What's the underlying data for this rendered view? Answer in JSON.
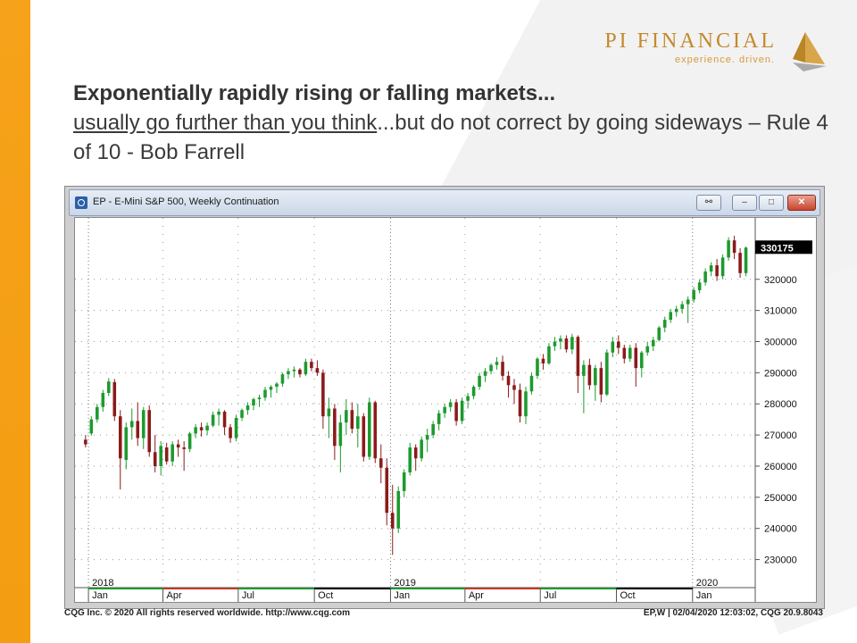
{
  "logo": {
    "name": "PI FINANCIAL",
    "tagline": "experience. driven."
  },
  "headline": {
    "bold": "Exponentially rapidly rising or falling markets...",
    "underlined": "usually go further than you think",
    "rest": "...but do not correct by going sideways  – Rule 4 of 10 - Bob Farrell"
  },
  "window": {
    "title": "EP - E-Mini S&P 500, Weekly Continuation",
    "btn_link": "⚯",
    "btn_min": "–",
    "btn_max": "□",
    "btn_close": "✕"
  },
  "footer": {
    "left": "CQG Inc. © 2020 All rights reserved worldwide. http://www.cqg.com",
    "right": "EP,W | 02/04/2020 12:03:02, CQG 20.9.8043"
  },
  "colors": {
    "up": "#1d9a2e",
    "down": "#8b1a1a",
    "accent_orange": "#f6a21a"
  },
  "chart_data": {
    "type": "candlestick",
    "title": "EP - E-Mini S&P 500, Weekly Continuation",
    "ylim": [
      225000,
      338000
    ],
    "y_ticks": [
      230000,
      240000,
      250000,
      260000,
      270000,
      280000,
      290000,
      300000,
      310000,
      320000
    ],
    "last_price": "330175",
    "year_labels": [
      "2018",
      "2019",
      "2020"
    ],
    "month_labels": [
      "Jan",
      "Apr",
      "Jul",
      "Oct",
      "Jan",
      "Apr",
      "Jul",
      "Oct",
      "Jan"
    ],
    "x_start": "2017-12-25",
    "candles": [
      {
        "o": 268500,
        "h": 270000,
        "l": 266000,
        "c": 267000
      },
      {
        "o": 270500,
        "h": 276000,
        "l": 269800,
        "c": 275000
      },
      {
        "o": 275000,
        "h": 280000,
        "l": 274000,
        "c": 279000
      },
      {
        "o": 279000,
        "h": 284500,
        "l": 277500,
        "c": 283500
      },
      {
        "o": 283500,
        "h": 288300,
        "l": 282500,
        "c": 287200
      },
      {
        "o": 287000,
        "h": 288000,
        "l": 274500,
        "c": 276000
      },
      {
        "o": 276000,
        "h": 278000,
        "l": 252500,
        "c": 262500
      },
      {
        "o": 262000,
        "h": 274000,
        "l": 259000,
        "c": 272500
      },
      {
        "o": 272500,
        "h": 278500,
        "l": 268500,
        "c": 274500
      },
      {
        "o": 274500,
        "h": 280500,
        "l": 266500,
        "c": 269000
      },
      {
        "o": 269000,
        "h": 279000,
        "l": 265500,
        "c": 278000
      },
      {
        "o": 278000,
        "h": 279500,
        "l": 263000,
        "c": 264500
      },
      {
        "o": 264500,
        "h": 270000,
        "l": 258000,
        "c": 260000
      },
      {
        "o": 260000,
        "h": 268000,
        "l": 257000,
        "c": 266500
      },
      {
        "o": 266000,
        "h": 267500,
        "l": 260500,
        "c": 261500
      },
      {
        "o": 261500,
        "h": 268000,
        "l": 260000,
        "c": 267000
      },
      {
        "o": 267000,
        "h": 268500,
        "l": 263000,
        "c": 266000
      },
      {
        "o": 266000,
        "h": 268000,
        "l": 258500,
        "c": 265500
      },
      {
        "o": 265500,
        "h": 271000,
        "l": 264500,
        "c": 270500
      },
      {
        "o": 270500,
        "h": 273500,
        "l": 269000,
        "c": 272500
      },
      {
        "o": 272500,
        "h": 274000,
        "l": 269500,
        "c": 271500
      },
      {
        "o": 271500,
        "h": 274000,
        "l": 270000,
        "c": 273000
      },
      {
        "o": 273000,
        "h": 277500,
        "l": 272500,
        "c": 276500
      },
      {
        "o": 276500,
        "h": 278500,
        "l": 273000,
        "c": 277500
      },
      {
        "o": 277500,
        "h": 278000,
        "l": 270000,
        "c": 272500
      },
      {
        "o": 272500,
        "h": 273500,
        "l": 267500,
        "c": 269000
      },
      {
        "o": 269000,
        "h": 276500,
        "l": 268000,
        "c": 275500
      },
      {
        "o": 275500,
        "h": 278500,
        "l": 274500,
        "c": 278000
      },
      {
        "o": 278000,
        "h": 280500,
        "l": 276500,
        "c": 279500
      },
      {
        "o": 279500,
        "h": 282000,
        "l": 278000,
        "c": 281500
      },
      {
        "o": 281500,
        "h": 283000,
        "l": 279000,
        "c": 282000
      },
      {
        "o": 282000,
        "h": 285500,
        "l": 281000,
        "c": 284500
      },
      {
        "o": 284500,
        "h": 286000,
        "l": 282000,
        "c": 285500
      },
      {
        "o": 285500,
        "h": 287000,
        "l": 283500,
        "c": 286500
      },
      {
        "o": 286500,
        "h": 290000,
        "l": 285500,
        "c": 289500
      },
      {
        "o": 289500,
        "h": 291500,
        "l": 288000,
        "c": 290500
      },
      {
        "o": 290500,
        "h": 292000,
        "l": 288500,
        "c": 291000
      },
      {
        "o": 291000,
        "h": 291500,
        "l": 288500,
        "c": 289500
      },
      {
        "o": 289500,
        "h": 294500,
        "l": 289000,
        "c": 293500
      },
      {
        "o": 293500,
        "h": 294500,
        "l": 290500,
        "c": 291500
      },
      {
        "o": 291500,
        "h": 294000,
        "l": 289000,
        "c": 290000
      },
      {
        "o": 290000,
        "h": 291000,
        "l": 272000,
        "c": 276000
      },
      {
        "o": 276000,
        "h": 282000,
        "l": 269000,
        "c": 278500
      },
      {
        "o": 278500,
        "h": 280000,
        "l": 262000,
        "c": 266500
      },
      {
        "o": 266500,
        "h": 276500,
        "l": 258000,
        "c": 274000
      },
      {
        "o": 274000,
        "h": 281500,
        "l": 270000,
        "c": 278000
      },
      {
        "o": 278000,
        "h": 280500,
        "l": 270500,
        "c": 272000
      },
      {
        "o": 272000,
        "h": 280000,
        "l": 266000,
        "c": 276000
      },
      {
        "o": 276000,
        "h": 277000,
        "l": 261500,
        "c": 263000
      },
      {
        "o": 263000,
        "h": 282000,
        "l": 262000,
        "c": 280500
      },
      {
        "o": 280500,
        "h": 281000,
        "l": 261000,
        "c": 262500
      },
      {
        "o": 262500,
        "h": 267000,
        "l": 254500,
        "c": 259500
      },
      {
        "o": 259500,
        "h": 262500,
        "l": 241000,
        "c": 245000
      },
      {
        "o": 245000,
        "h": 254000,
        "l": 231500,
        "c": 240000
      },
      {
        "o": 240000,
        "h": 253500,
        "l": 238500,
        "c": 252000
      },
      {
        "o": 252000,
        "h": 259000,
        "l": 250000,
        "c": 258000
      },
      {
        "o": 258000,
        "h": 267500,
        "l": 257000,
        "c": 266000
      },
      {
        "o": 266000,
        "h": 267000,
        "l": 258500,
        "c": 262500
      },
      {
        "o": 262500,
        "h": 269500,
        "l": 261500,
        "c": 268500
      },
      {
        "o": 268500,
        "h": 272000,
        "l": 264500,
        "c": 270000
      },
      {
        "o": 270000,
        "h": 274500,
        "l": 269000,
        "c": 273500
      },
      {
        "o": 273500,
        "h": 278000,
        "l": 271500,
        "c": 277000
      },
      {
        "o": 277000,
        "h": 280000,
        "l": 275500,
        "c": 279000
      },
      {
        "o": 279000,
        "h": 281500,
        "l": 277500,
        "c": 280500
      },
      {
        "o": 280500,
        "h": 281500,
        "l": 273000,
        "c": 274500
      },
      {
        "o": 274500,
        "h": 282000,
        "l": 273500,
        "c": 281000
      },
      {
        "o": 281000,
        "h": 283500,
        "l": 278500,
        "c": 282500
      },
      {
        "o": 282500,
        "h": 286000,
        "l": 281500,
        "c": 285500
      },
      {
        "o": 285500,
        "h": 290000,
        "l": 284500,
        "c": 289000
      },
      {
        "o": 289000,
        "h": 291500,
        "l": 287000,
        "c": 290500
      },
      {
        "o": 290500,
        "h": 293000,
        "l": 289500,
        "c": 292500
      },
      {
        "o": 292500,
        "h": 295000,
        "l": 291000,
        "c": 293500
      },
      {
        "o": 293500,
        "h": 295500,
        "l": 287500,
        "c": 289000
      },
      {
        "o": 289000,
        "h": 290500,
        "l": 282000,
        "c": 286000
      },
      {
        "o": 286000,
        "h": 288000,
        "l": 280000,
        "c": 284500
      },
      {
        "o": 284500,
        "h": 286500,
        "l": 274000,
        "c": 276000
      },
      {
        "o": 276000,
        "h": 285500,
        "l": 273500,
        "c": 284000
      },
      {
        "o": 284000,
        "h": 290000,
        "l": 283000,
        "c": 289000
      },
      {
        "o": 289000,
        "h": 295000,
        "l": 288000,
        "c": 294500
      },
      {
        "o": 294500,
        "h": 296000,
        "l": 291000,
        "c": 293000
      },
      {
        "o": 293000,
        "h": 299500,
        "l": 292500,
        "c": 298500
      },
      {
        "o": 298500,
        "h": 301500,
        "l": 297000,
        "c": 300000
      },
      {
        "o": 300000,
        "h": 302000,
        "l": 297500,
        "c": 301000
      },
      {
        "o": 301000,
        "h": 302000,
        "l": 296500,
        "c": 297500
      },
      {
        "o": 297500,
        "h": 302500,
        "l": 296000,
        "c": 301500
      },
      {
        "o": 301500,
        "h": 302000,
        "l": 283500,
        "c": 289000
      },
      {
        "o": 289000,
        "h": 294000,
        "l": 277000,
        "c": 292500
      },
      {
        "o": 292500,
        "h": 294500,
        "l": 284500,
        "c": 286000
      },
      {
        "o": 286000,
        "h": 292500,
        "l": 281000,
        "c": 291500
      },
      {
        "o": 291500,
        "h": 293500,
        "l": 280500,
        "c": 283000
      },
      {
        "o": 283000,
        "h": 297500,
        "l": 282500,
        "c": 296500
      },
      {
        "o": 296500,
        "h": 301500,
        "l": 295000,
        "c": 300000
      },
      {
        "o": 300000,
        "h": 302000,
        "l": 296000,
        "c": 298000
      },
      {
        "o": 298000,
        "h": 299000,
        "l": 293000,
        "c": 294500
      },
      {
        "o": 294500,
        "h": 299000,
        "l": 293500,
        "c": 298000
      },
      {
        "o": 298000,
        "h": 299500,
        "l": 285500,
        "c": 291500
      },
      {
        "o": 291500,
        "h": 297000,
        "l": 288500,
        "c": 296500
      },
      {
        "o": 296500,
        "h": 300000,
        "l": 295500,
        "c": 298500
      },
      {
        "o": 298500,
        "h": 301500,
        "l": 297000,
        "c": 300500
      },
      {
        "o": 300500,
        "h": 305000,
        "l": 300000,
        "c": 304500
      },
      {
        "o": 304500,
        "h": 308000,
        "l": 303000,
        "c": 307000
      },
      {
        "o": 307000,
        "h": 310500,
        "l": 306000,
        "c": 309500
      },
      {
        "o": 309500,
        "h": 311500,
        "l": 308000,
        "c": 310500
      },
      {
        "o": 310500,
        "h": 313000,
        "l": 309000,
        "c": 312000
      },
      {
        "o": 312000,
        "h": 314500,
        "l": 306000,
        "c": 313500
      },
      {
        "o": 313500,
        "h": 317500,
        "l": 312500,
        "c": 316500
      },
      {
        "o": 316500,
        "h": 320000,
        "l": 315500,
        "c": 319000
      },
      {
        "o": 319000,
        "h": 323500,
        "l": 318000,
        "c": 322500
      },
      {
        "o": 322500,
        "h": 325500,
        "l": 321000,
        "c": 324500
      },
      {
        "o": 324500,
        "h": 326500,
        "l": 319500,
        "c": 321000
      },
      {
        "o": 321000,
        "h": 328000,
        "l": 320000,
        "c": 327000
      },
      {
        "o": 327000,
        "h": 333500,
        "l": 326000,
        "c": 332500
      },
      {
        "o": 332500,
        "h": 334000,
        "l": 326500,
        "c": 328500
      },
      {
        "o": 328500,
        "h": 330000,
        "l": 320500,
        "c": 322000
      },
      {
        "o": 322000,
        "h": 330500,
        "l": 321000,
        "c": 330175
      }
    ]
  }
}
